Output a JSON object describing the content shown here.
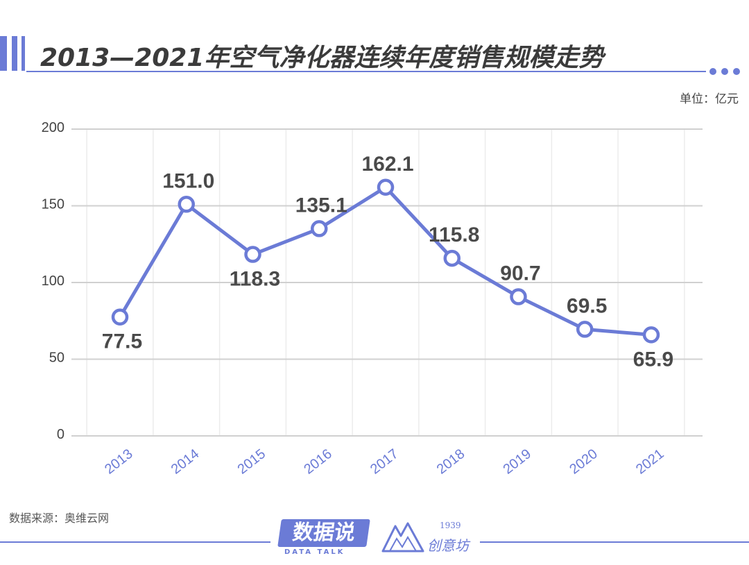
{
  "title": "2013—2021年空气净化器连续年度销售规模走势",
  "unit_label": "单位：亿元",
  "source": "数据来源：奥维云网",
  "brand_primary": {
    "name": "数据说",
    "sub": "DATA TALK"
  },
  "brand_secondary": {
    "year": "1939",
    "name": "创意坊"
  },
  "colors": {
    "accent": "#6b7bd6",
    "grid": "#d0d0d0",
    "label": "#444444",
    "tick_x": "#6b7bd6"
  },
  "chart_data": {
    "type": "line",
    "title": "2013—2021年空气净化器连续年度销售规模走势",
    "xlabel": "",
    "ylabel": "",
    "categories": [
      "2013",
      "2014",
      "2015",
      "2016",
      "2017",
      "2018",
      "2019",
      "2020",
      "2021"
    ],
    "series": [
      {
        "values": [
          77.5,
          151.0,
          118.3,
          135.1,
          162.1,
          115.8,
          90.7,
          69.5,
          65.9
        ]
      }
    ],
    "data_labels": [
      "77.5",
      "151.0",
      "118.3",
      "135.1",
      "162.1",
      "115.8",
      "90.7",
      "69.5",
      "65.9"
    ],
    "ylim": [
      0,
      200
    ],
    "yticks": [
      "0",
      "50",
      "100",
      "150",
      "200"
    ],
    "grid": true
  }
}
